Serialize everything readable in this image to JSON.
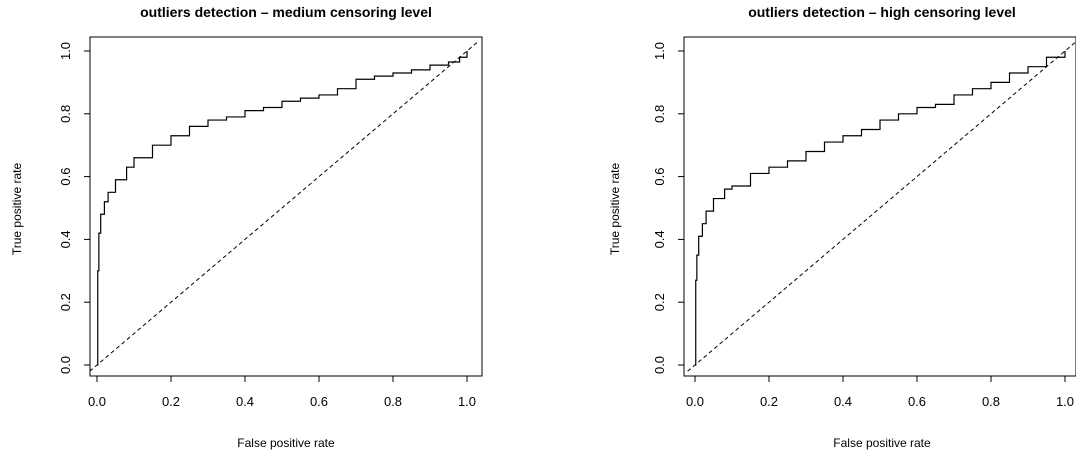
{
  "chart_data": [
    {
      "type": "line",
      "title": "outliers detection – medium censoring level",
      "xlabel": "False positive rate",
      "ylabel": "True positive rate",
      "xlim": [
        0,
        1
      ],
      "ylim": [
        0,
        1
      ],
      "x_ticks": [
        "0.0",
        "0.2",
        "0.4",
        "0.6",
        "0.8",
        "1.0"
      ],
      "y_ticks": [
        "0.0",
        "0.2",
        "0.4",
        "0.6",
        "0.8",
        "1.0"
      ],
      "series": [
        {
          "style": "solid step",
          "x": [
            0,
            0.002,
            0.005,
            0.01,
            0.02,
            0.03,
            0.05,
            0.08,
            0.1,
            0.15,
            0.2,
            0.25,
            0.3,
            0.35,
            0.4,
            0.45,
            0.5,
            0.55,
            0.6,
            0.65,
            0.7,
            0.75,
            0.8,
            0.85,
            0.9,
            0.95,
            0.98,
            1.0
          ],
          "y": [
            0,
            0.3,
            0.42,
            0.48,
            0.52,
            0.55,
            0.59,
            0.63,
            0.66,
            0.7,
            0.73,
            0.76,
            0.78,
            0.79,
            0.81,
            0.82,
            0.84,
            0.85,
            0.86,
            0.88,
            0.91,
            0.92,
            0.93,
            0.94,
            0.955,
            0.965,
            0.98,
            1.0
          ]
        },
        {
          "style": "dashed diagonal",
          "x": [
            0,
            1
          ],
          "y": [
            0,
            1
          ]
        }
      ]
    },
    {
      "type": "line",
      "title": "outliers detection – high censoring level",
      "xlabel": "False positive rate",
      "ylabel": "True positive rate",
      "xlim": [
        0,
        1
      ],
      "ylim": [
        0,
        1
      ],
      "x_ticks": [
        "0.0",
        "0.2",
        "0.4",
        "0.6",
        "0.8",
        "1.0"
      ],
      "y_ticks": [
        "0.0",
        "0.2",
        "0.4",
        "0.6",
        "0.8",
        "1.0"
      ],
      "series": [
        {
          "style": "solid step",
          "x": [
            0,
            0.002,
            0.005,
            0.01,
            0.02,
            0.03,
            0.05,
            0.08,
            0.1,
            0.15,
            0.2,
            0.25,
            0.3,
            0.35,
            0.4,
            0.45,
            0.5,
            0.55,
            0.6,
            0.65,
            0.7,
            0.75,
            0.8,
            0.85,
            0.9,
            0.95,
            1.0
          ],
          "y": [
            0,
            0.27,
            0.35,
            0.41,
            0.45,
            0.49,
            0.53,
            0.56,
            0.57,
            0.61,
            0.63,
            0.65,
            0.68,
            0.71,
            0.73,
            0.75,
            0.78,
            0.8,
            0.82,
            0.83,
            0.86,
            0.88,
            0.9,
            0.93,
            0.95,
            0.98,
            1.0
          ]
        },
        {
          "style": "dashed diagonal",
          "x": [
            0,
            1
          ],
          "y": [
            0,
            1
          ]
        }
      ]
    }
  ]
}
